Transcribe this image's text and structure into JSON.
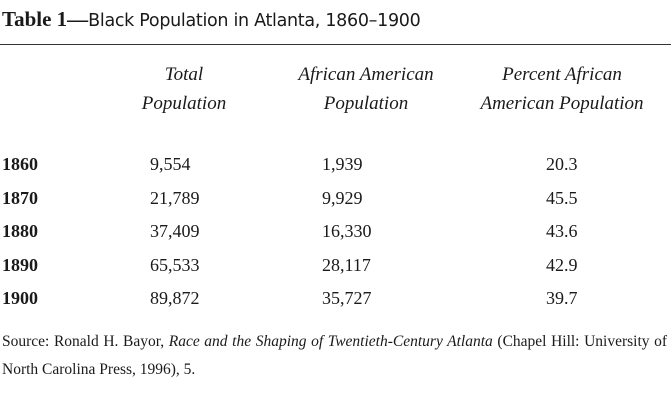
{
  "title": {
    "label": "Table 1—",
    "text": "Black Population in Atlanta, 1860–1900"
  },
  "columns": [
    {
      "line1": "Total",
      "line2": "Population"
    },
    {
      "line1": "African American",
      "line2": "Population"
    },
    {
      "line1": "Percent African",
      "line2": "American Population"
    }
  ],
  "rows": [
    {
      "year": "1860",
      "total": "9,554",
      "african_american": "1,939",
      "percent": "20.3"
    },
    {
      "year": "1870",
      "total": "21,789",
      "african_american": "9,929",
      "percent": "45.5"
    },
    {
      "year": "1880",
      "total": "37,409",
      "african_american": "16,330",
      "percent": "43.6"
    },
    {
      "year": "1890",
      "total": "65,533",
      "african_american": "28,117",
      "percent": "42.9"
    },
    {
      "year": "1900",
      "total": "89,872",
      "african_american": "35,727",
      "percent": "39.7"
    }
  ],
  "source": {
    "prefix": "Source: Ronald H. Bayor,",
    "book_title": "Race and the Shaping of Twentieth-Century Atlanta",
    "suffix": "(Chapel Hill: University of North Carolina Press, 1996), 5."
  }
}
